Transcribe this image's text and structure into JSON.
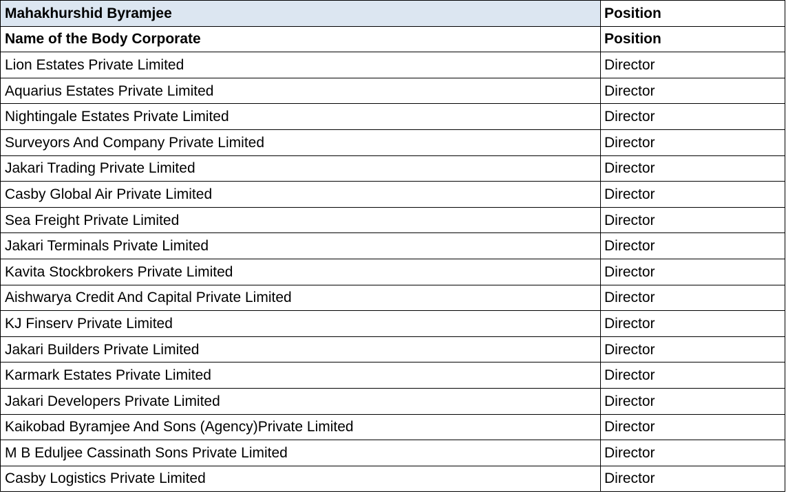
{
  "title_row": {
    "name": "Mahakhurshid Byramjee",
    "position": "Position"
  },
  "header_row": {
    "name": "Name of the Body Corporate",
    "position": "Position"
  },
  "colors": {
    "title_fill": "#dce6f1",
    "border": "#000000"
  },
  "rows": [
    {
      "name": "Lion Estates Private Limited",
      "position": "Director"
    },
    {
      "name": "Aquarius Estates Private Limited",
      "position": "Director"
    },
    {
      "name": "Nightingale Estates Private Limited",
      "position": "Director"
    },
    {
      "name": "Surveyors And Company Private Limited",
      "position": "Director"
    },
    {
      "name": "Jakari Trading Private Limited",
      "position": "Director"
    },
    {
      "name": "Casby Global Air Private Limited",
      "position": "Director"
    },
    {
      "name": "Sea Freight Private Limited",
      "position": "Director"
    },
    {
      "name": "Jakari Terminals Private Limited",
      "position": "Director"
    },
    {
      "name": "Kavita Stockbrokers Private Limited",
      "position": "Director"
    },
    {
      "name": "Aishwarya Credit And Capital Private Limited",
      "position": "Director"
    },
    {
      "name": "KJ Finserv Private Limited",
      "position": "Director"
    },
    {
      "name": "Jakari Builders Private Limited",
      "position": "Director"
    },
    {
      "name": "Karmark Estates Private Limited",
      "position": "Director"
    },
    {
      "name": "Jakari Developers Private Limited",
      "position": "Director"
    },
    {
      "name": "Kaikobad Byramjee And Sons (Agency)Private Limited",
      "position": "Director"
    },
    {
      "name": "M B Eduljee Cassinath Sons Private Limited",
      "position": "Director"
    },
    {
      "name": "Casby Logistics Private Limited",
      "position": "Director"
    }
  ]
}
